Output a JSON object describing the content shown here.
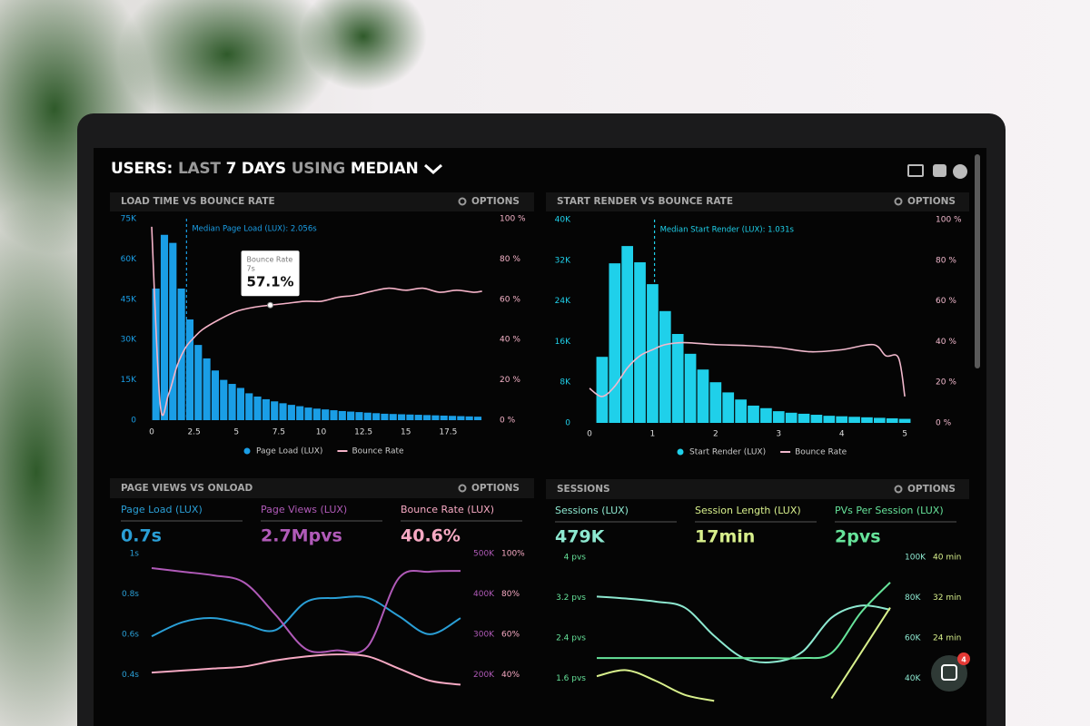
{
  "header": {
    "title_parts": [
      "USERS:",
      "LAST",
      "7 DAYS",
      "USING",
      "MEDIAN"
    ]
  },
  "notifications": 4,
  "chart_data": [
    {
      "type": "histogram",
      "title": "LOAD TIME VS BOUNCE RATE",
      "options": "OPTIONS",
      "bins": [
        0,
        0.5,
        1,
        1.5,
        2,
        2.5,
        3,
        3.5,
        4,
        4.5,
        5,
        5.5,
        6,
        6.5,
        7,
        7.5,
        8,
        8.5,
        9,
        9.5,
        10,
        10.5,
        11,
        11.5,
        12,
        12.5,
        13,
        13.5,
        14,
        14.5,
        15,
        15.5,
        16,
        16.5,
        17,
        17.5,
        18,
        18.5,
        19,
        19.5
      ],
      "series": [
        {
          "name": "Page Load (LUX)",
          "color": "#1a9ee6",
          "values": [
            49000,
            69000,
            66000,
            49000,
            37500,
            28000,
            23000,
            18500,
            15000,
            13500,
            12000,
            10000,
            8800,
            7800,
            7000,
            6300,
            5700,
            5200,
            4700,
            4300,
            4000,
            3700,
            3400,
            3200,
            3000,
            2800,
            2600,
            2400,
            2300,
            2200,
            2100,
            2000,
            1900,
            1800,
            1700,
            1600,
            1500,
            1400,
            1300
          ]
        },
        {
          "name": "Bounce Rate",
          "color": "#f5b3c8",
          "axis": "y2",
          "x": [
            0,
            0.5,
            1,
            1.5,
            2,
            2.5,
            3,
            4,
            5,
            6,
            7,
            8,
            9,
            10,
            11,
            12,
            13,
            14,
            15,
            16,
            17,
            18,
            19,
            19.5
          ],
          "values": [
            96,
            8,
            13,
            27,
            36,
            41,
            45,
            50,
            54,
            56,
            57.1,
            58,
            59,
            59,
            61,
            62,
            64,
            65.5,
            64.5,
            65.5,
            63.5,
            64.5,
            63.5,
            64
          ]
        }
      ],
      "xlim": [
        0,
        20
      ],
      "xticks": [
        0,
        2.5,
        5,
        7.5,
        10,
        12.5,
        15,
        17.5
      ],
      "ylim": [
        0,
        75000
      ],
      "yticks": [
        0,
        {
          "value": 15000,
          "label": "15K"
        },
        {
          "value": 30000,
          "label": "30K"
        },
        {
          "value": 45000,
          "label": "45K"
        },
        {
          "value": 60000,
          "label": "60K"
        },
        {
          "value": 75000,
          "label": "75K"
        }
      ],
      "y2lim": [
        0,
        100
      ],
      "y2ticks": [
        {
          "value": 0,
          "label": "0 %"
        },
        {
          "value": 20,
          "label": "20 %"
        },
        {
          "value": 40,
          "label": "40 %"
        },
        {
          "value": 60,
          "label": "60 %"
        },
        {
          "value": 80,
          "label": "80 %"
        },
        {
          "value": 100,
          "label": "100 %"
        }
      ],
      "annotation": {
        "text": "Median Page Load (LUX): 2.056s",
        "x": 2.056
      },
      "tooltip": {
        "title": "Bounce Rate",
        "x": {
          "value": 7,
          "label": "7s"
        },
        "value": 57.1,
        "value_label": "57.1%"
      }
    },
    {
      "type": "histogram",
      "title": "START RENDER VS BOUNCE RATE",
      "options": "OPTIONS",
      "bins": [
        0.1,
        0.3,
        0.5,
        0.7,
        0.9,
        1.1,
        1.3,
        1.5,
        1.7,
        1.9,
        2.1,
        2.3,
        2.5,
        2.7,
        2.9,
        3.1,
        3.3,
        3.5,
        3.7,
        3.9,
        4.1,
        4.3,
        4.5,
        4.7,
        4.9,
        5.1
      ],
      "series": [
        {
          "name": "Start Render (LUX)",
          "color": "#1fd0ea",
          "values": [
            13000,
            31400,
            34800,
            31600,
            27300,
            22000,
            17500,
            13600,
            10500,
            8000,
            6000,
            4600,
            3400,
            2900,
            2300,
            2000,
            1800,
            1600,
            1400,
            1300,
            1200,
            1100,
            1000,
            900,
            800
          ]
        },
        {
          "name": "Bounce Rate",
          "color": "#f0b8cc",
          "axis": "y2",
          "x": [
            0,
            0.2,
            0.4,
            0.6,
            0.8,
            1,
            1.2,
            1.5,
            2,
            2.5,
            3,
            3.5,
            4,
            4.5,
            4.7,
            4.9,
            5
          ],
          "values": [
            17,
            13,
            18,
            27,
            33,
            36,
            38.5,
            39.5,
            38.5,
            38,
            37,
            35,
            36,
            38.5,
            33,
            32,
            13
          ]
        }
      ],
      "xlim": [
        0,
        5.2
      ],
      "xticks": [
        0,
        1,
        2,
        3,
        4,
        5
      ],
      "ylim": [
        0,
        40000
      ],
      "yticks": [
        0,
        {
          "value": 8000,
          "label": "8K"
        },
        {
          "value": 16000,
          "label": "16K"
        },
        {
          "value": 24000,
          "label": "24K"
        },
        {
          "value": 32000,
          "label": "32K"
        },
        {
          "value": 40000,
          "label": "40K"
        }
      ],
      "y2lim": [
        0,
        100
      ],
      "y2ticks": [
        {
          "value": 0,
          "label": "0 %"
        },
        {
          "value": 20,
          "label": "20 %"
        },
        {
          "value": 40,
          "label": "40 %"
        },
        {
          "value": 60,
          "label": "60 %"
        },
        {
          "value": 80,
          "label": "80 %"
        },
        {
          "value": 100,
          "label": "100 %"
        }
      ],
      "annotation": {
        "text": "Median Start Render (LUX): 1.031s",
        "x": 1.031
      }
    },
    {
      "type": "line",
      "title": "PAGE VIEWS VS ONLOAD",
      "options": "OPTIONS",
      "categories": [
        null,
        null,
        null,
        null,
        null,
        null,
        null,
        null,
        null,
        null,
        null
      ],
      "series": [
        {
          "name": "Page Load (LUX)",
          "summary": "0.7s",
          "color": "#2a9fd6",
          "axis": "y",
          "values": [
            0.59,
            0.66,
            0.68,
            0.65,
            0.62,
            0.76,
            0.78,
            0.78,
            0.69,
            0.6,
            0.68
          ]
        },
        {
          "name": "Page Views (LUX)",
          "summary": "2.7Mpvs",
          "color": "#b05ab8",
          "axis": "y2",
          "values": [
            464000,
            455000,
            446000,
            428000,
            349000,
            263000,
            260000,
            270000,
            439000,
            455000,
            457000
          ]
        },
        {
          "name": "Bounce Rate (LUX)",
          "summary": "40.6%",
          "color": "#f6a9c3",
          "axis": "y3",
          "values": [
            41,
            42,
            43,
            44,
            47,
            49,
            50,
            49,
            43,
            37,
            35
          ]
        }
      ],
      "ylim": [
        0.28,
        1
      ],
      "yticks": [
        {
          "value": 0.4,
          "label": "0.4s"
        },
        {
          "value": 0.6,
          "label": "0.6s"
        },
        {
          "value": 0.8,
          "label": "0.8s"
        },
        {
          "value": 1,
          "label": "1s"
        }
      ],
      "y2lim": [
        140000,
        500000
      ],
      "y2ticks": [
        {
          "value": 200000,
          "label": "200K"
        },
        {
          "value": 300000,
          "label": "300K"
        },
        {
          "value": 400000,
          "label": "400K"
        },
        {
          "value": 500000,
          "label": "500K"
        }
      ],
      "y3lim": [
        28,
        100
      ],
      "y3ticks": [
        {
          "value": 40,
          "label": "40%"
        },
        {
          "value": 60,
          "label": "60%"
        },
        {
          "value": 80,
          "label": "80%"
        },
        {
          "value": 100,
          "label": "100%"
        }
      ]
    },
    {
      "type": "line",
      "title": "SESSIONS",
      "options": "OPTIONS",
      "categories": [
        null,
        null,
        null,
        null,
        null,
        null,
        null,
        null,
        null,
        null,
        null
      ],
      "series": [
        {
          "name": "Sessions (LUX)",
          "summary": "479K",
          "color": "#8de8d0",
          "axis": "y2",
          "values": [
            80500,
            79500,
            78000,
            75000,
            61000,
            50000,
            48000,
            53000,
            70000,
            76000,
            74000
          ]
        },
        {
          "name": "Session Length (LUX)",
          "summary": "17min",
          "color": "#d8f08c",
          "axis": "y3",
          "values": [
            16.4,
            17.6,
            15.5,
            12.7,
            11.5,
            null,
            null,
            null,
            12,
            21,
            30
          ]
        },
        {
          "name": "PVs Per Session (LUX)",
          "summary": "2pvs",
          "color": "#66e39a",
          "axis": "y",
          "values": [
            2,
            2,
            2,
            2,
            2,
            2,
            2,
            2,
            2.1,
            2.9,
            3.5
          ]
        }
      ],
      "ylim": [
        1.12,
        4
      ],
      "yticks": [
        {
          "value": 1.6,
          "label": "1.6 pvs"
        },
        {
          "value": 2.4,
          "label": "2.4 pvs"
        },
        {
          "value": 3.2,
          "label": "3.2 pvs"
        },
        {
          "value": 4,
          "label": "4 pvs"
        }
      ],
      "y2lim": [
        28000,
        100000
      ],
      "y2ticks": [
        {
          "value": 40000,
          "label": "40K"
        },
        {
          "value": 60000,
          "label": "60K"
        },
        {
          "value": 80000,
          "label": "80K"
        },
        {
          "value": 100000,
          "label": "100K"
        }
      ],
      "y3lim": [
        11.2,
        40
      ],
      "y3ticks": [
        {
          "value": 24,
          "label": "24 min"
        },
        {
          "value": 32,
          "label": "32 min"
        },
        {
          "value": 40,
          "label": "40 min"
        }
      ]
    }
  ]
}
